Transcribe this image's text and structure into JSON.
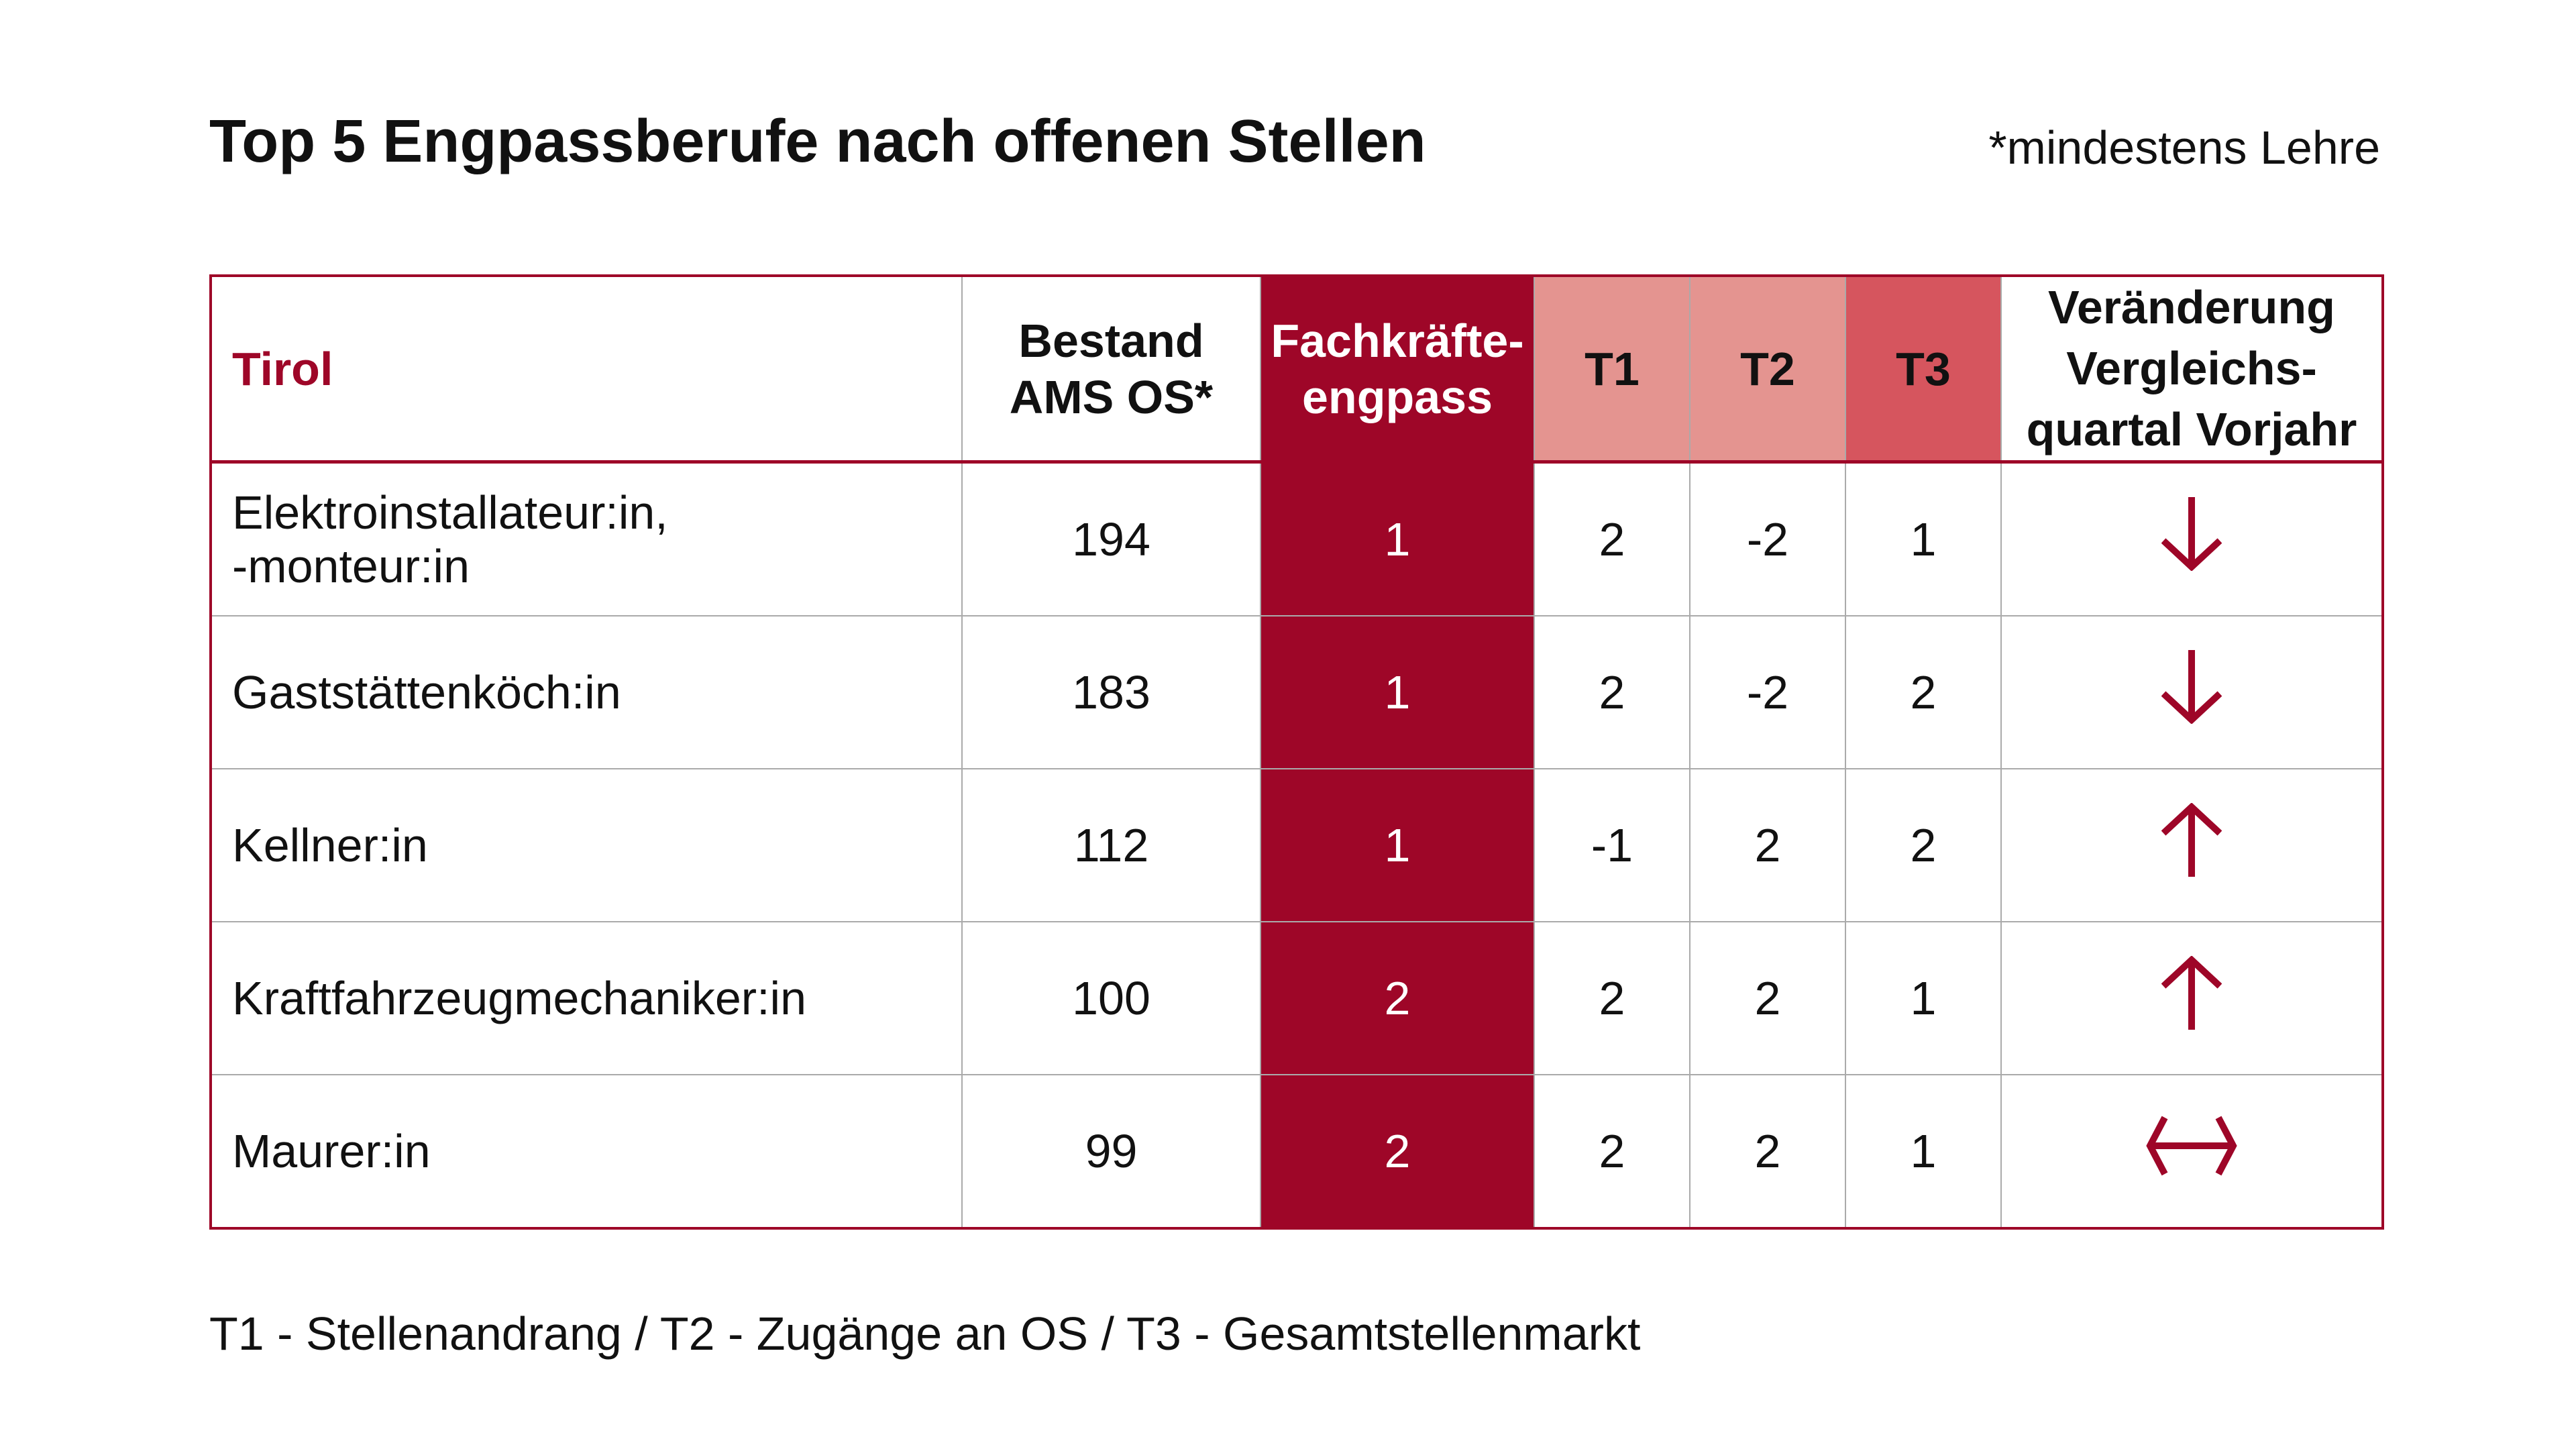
{
  "title": "Top 5 Engpassberufe nach offenen Stellen",
  "note": "*mindestens Lehre",
  "legend": "T1 - Stellenandrang / T2 - Zugänge an OS / T3 - Gesamtstellenmarkt",
  "colors": {
    "accent": "#9e0628",
    "t1_t2_header": "#e49490",
    "t3_header": "#d6555e"
  },
  "table": {
    "headers": {
      "region": "Tirol",
      "bestand_1": "Bestand",
      "bestand_2": "AMS OS*",
      "fk_1": "Fachkräfte-",
      "fk_2": "engpass",
      "t1": "T1",
      "t2": "T2",
      "t3": "T3",
      "chg_1": "Veränderung",
      "chg_2": "Vergleichs-",
      "chg_3": "quartal Vorjahr"
    },
    "rows": [
      {
        "beruf_1": "Elektroinstallateur:in,",
        "beruf_2": "-monteur:in",
        "bestand": "194",
        "fk": "1",
        "t1": "2",
        "t2": "-2",
        "t3": "1",
        "change": "down"
      },
      {
        "beruf_1": "Gaststättenköch:in",
        "bestand": "183",
        "fk": "1",
        "t1": "2",
        "t2": "-2",
        "t3": "2",
        "change": "down"
      },
      {
        "beruf_1": "Kellner:in",
        "bestand": "112",
        "fk": "1",
        "t1": "-1",
        "t2": "2",
        "t3": "2",
        "change": "up"
      },
      {
        "beruf_1": "Kraftfahrzeugmechaniker:in",
        "bestand": "100",
        "fk": "2",
        "t1": "2",
        "t2": "2",
        "t3": "1",
        "change": "up"
      },
      {
        "beruf_1": "Maurer:in",
        "bestand": "99",
        "fk": "2",
        "t1": "2",
        "t2": "2",
        "t3": "1",
        "change": "unchanged"
      }
    ]
  }
}
